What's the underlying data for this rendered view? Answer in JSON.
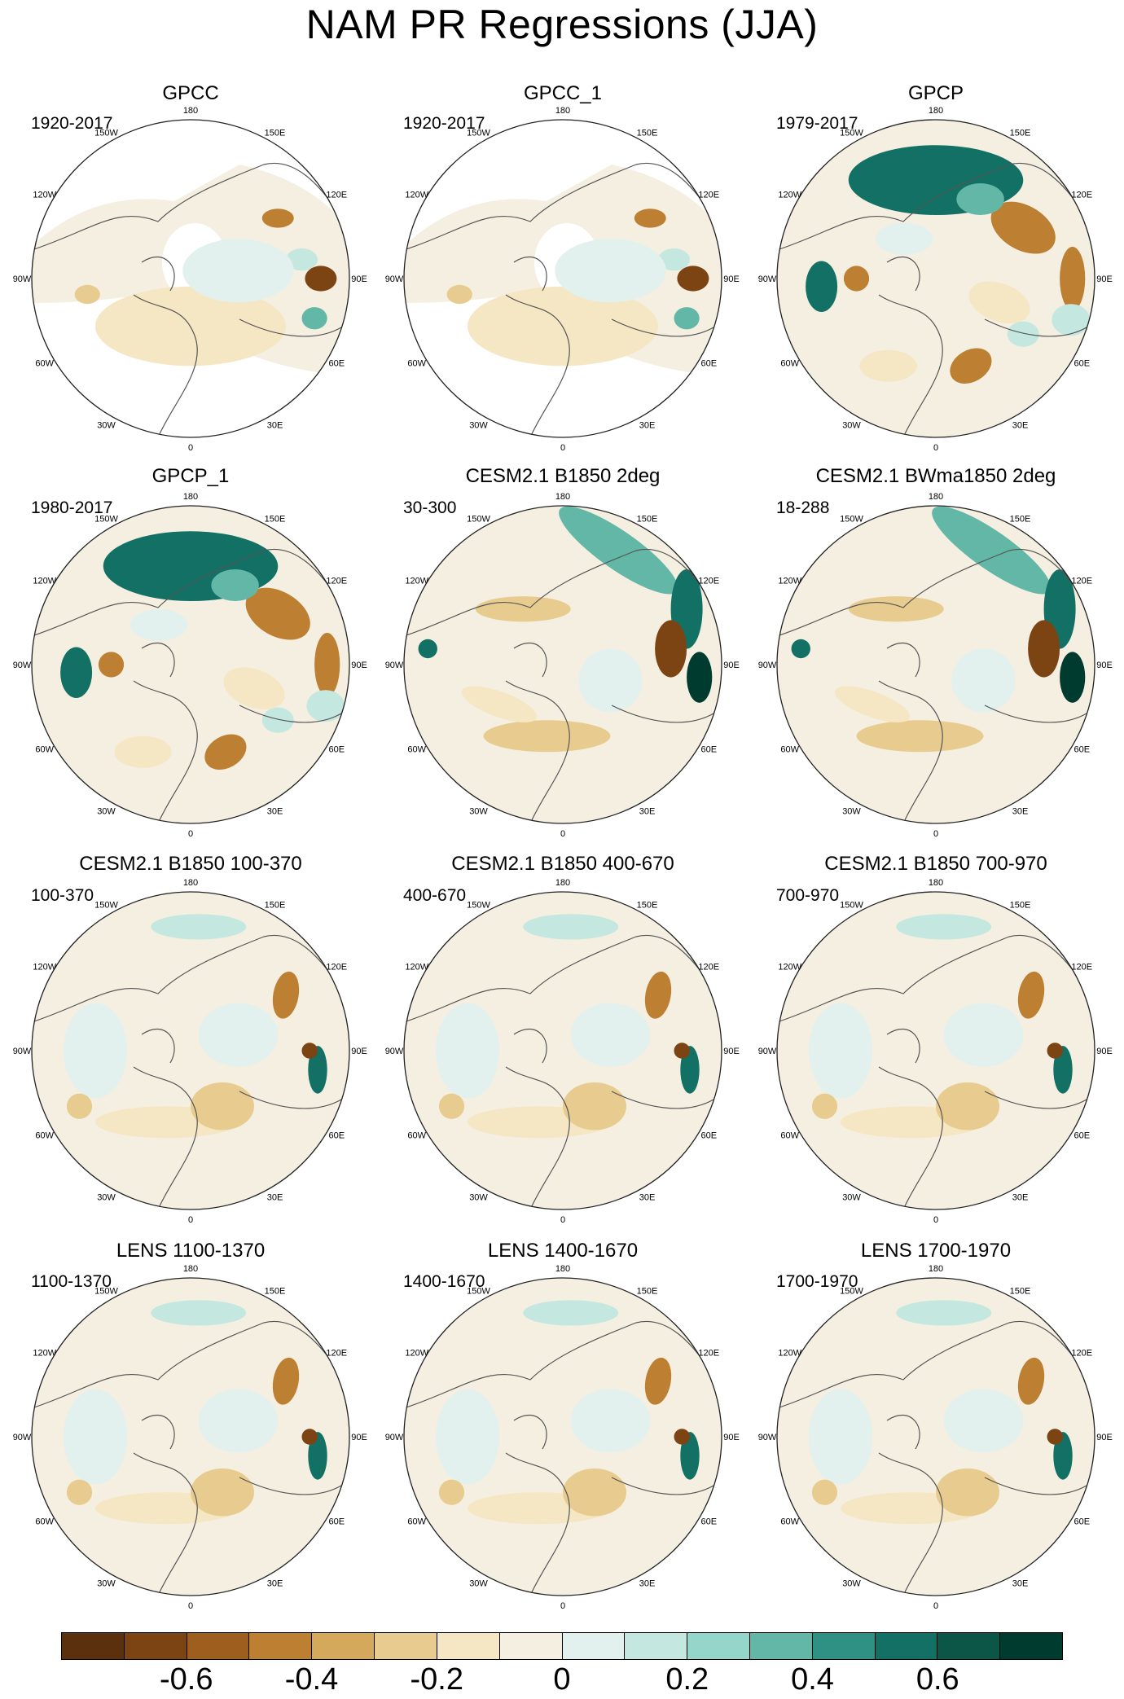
{
  "title": "NAM PR Regressions (JJA)",
  "chart_data": {
    "type": "polar-map-grid",
    "variable": "PR regression onto NAM",
    "season": "JJA",
    "projection": "north polar stereographic",
    "longitude_labels": [
      "180",
      "150E",
      "120E",
      "90E",
      "60E",
      "30E",
      "0",
      "30W",
      "60W",
      "90W",
      "120W",
      "150W"
    ],
    "panels": [
      {
        "title": "GPCC",
        "period": "1920-2017",
        "shading": "obs_sparse"
      },
      {
        "title": "GPCC_1",
        "period": "1920-2017",
        "shading": "obs_sparse"
      },
      {
        "title": "GPCP",
        "period": "1979-2017",
        "shading": "obs_full"
      },
      {
        "title": "GPCP_1",
        "period": "1980-2017",
        "shading": "obs_full"
      },
      {
        "title": "CESM2.1 B1850 2deg",
        "period": "30-300",
        "shading": "model_strong"
      },
      {
        "title": "CESM2.1 BWma1850 2deg",
        "period": "18-288",
        "shading": "model_strong"
      },
      {
        "title": "CESM2.1 B1850 100-370",
        "period": "100-370",
        "shading": "model"
      },
      {
        "title": "CESM2.1 B1850 400-670",
        "period": "400-670",
        "shading": "model"
      },
      {
        "title": "CESM2.1 B1850 700-970",
        "period": "700-970",
        "shading": "model"
      },
      {
        "title": "LENS 1100-1370",
        "period": "1100-1370",
        "shading": "model"
      },
      {
        "title": "LENS 1400-1670",
        "period": "1400-1670",
        "shading": "model"
      },
      {
        "title": "LENS 1700-1970",
        "period": "1700-1970",
        "shading": "model"
      }
    ],
    "colorbar": {
      "ticks": [
        -0.6,
        -0.4,
        -0.2,
        0,
        0.2,
        0.4,
        0.6
      ],
      "tick_labels": [
        "-0.6",
        "-0.4",
        "-0.2",
        "0",
        "0.2",
        "0.4",
        "0.6"
      ],
      "range": [
        -0.8,
        0.8
      ],
      "colors": [
        "#5b300c",
        "#7d4413",
        "#9e5e1d",
        "#bd8032",
        "#d4a95c",
        "#e8cc8f",
        "#f5e6c4",
        "#f5efe2",
        "#e2f0ee",
        "#c4e8e0",
        "#94d6c9",
        "#62b7a6",
        "#2f9184",
        "#137065",
        "#0b5647",
        "#003b2f"
      ]
    }
  }
}
